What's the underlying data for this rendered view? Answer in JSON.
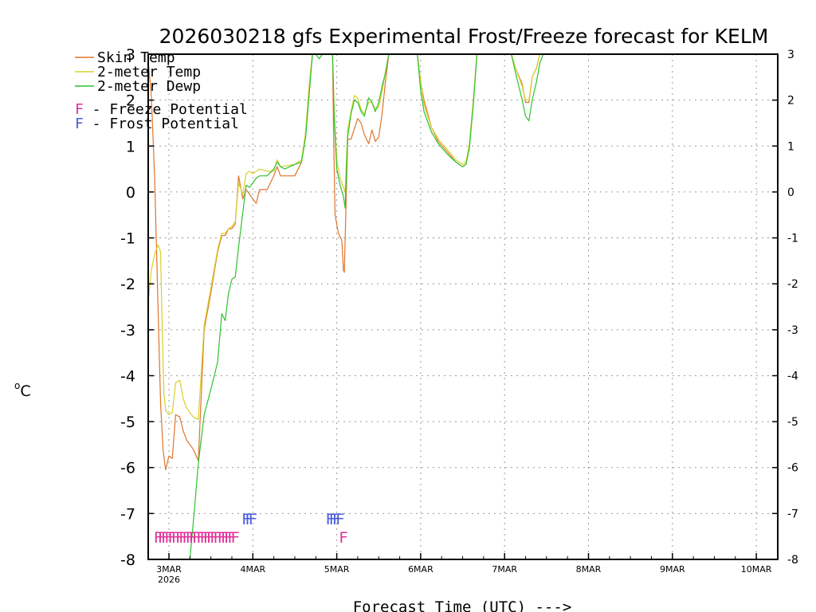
{
  "chart_data": {
    "type": "line",
    "title": "2026030218 gfs Experimental Frost/Freeze forecast for KELM",
    "xlabel": "Forecast Time (UTC) --->",
    "ylabel_unit": "°C",
    "ylabel_sup": "o",
    "ylabel_main": "C",
    "ylim": [
      -8,
      3
    ],
    "xlim_days": [
      -0.25,
      7.3
    ],
    "y_ticks": [
      "-8",
      "-7",
      "-6",
      "-5",
      "-4",
      "-3",
      "-2",
      "-1",
      "0",
      "1",
      "2",
      "3"
    ],
    "x_ticks": [
      {
        "label": "3MAR",
        "day": 0
      },
      {
        "label": "4MAR",
        "day": 1
      },
      {
        "label": "5MAR",
        "day": 2
      },
      {
        "label": "6MAR",
        "day": 3
      },
      {
        "label": "7MAR",
        "day": 4
      },
      {
        "label": "8MAR",
        "day": 5
      },
      {
        "label": "9MAR",
        "day": 6
      },
      {
        "label": "10MAR",
        "day": 7
      }
    ],
    "x_year_label": "2026",
    "grid": true,
    "legend": {
      "series_entries": [
        "Skin Temp",
        "2-meter Temp",
        "2-meter Dewp"
      ],
      "marker_entries": [
        {
          "marker": "F",
          "label": " - Freeze Potential",
          "color": "#e0309a"
        },
        {
          "marker": "F",
          "label": " - Frost Potential",
          "color": "#4a5bdc"
        }
      ],
      "position": "top-left"
    },
    "series": [
      {
        "name": "Skin Temp",
        "color": "#e0742a",
        "points": [
          [
            -0.25,
            2.9
          ],
          [
            -0.21,
            2.1
          ],
          [
            -0.17,
            0.3
          ],
          [
            -0.13,
            -2.5
          ],
          [
            -0.1,
            -4.6
          ],
          [
            -0.07,
            -5.6
          ],
          [
            -0.04,
            -6.05
          ],
          [
            0.0,
            -5.75
          ],
          [
            0.04,
            -5.8
          ],
          [
            0.08,
            -4.85
          ],
          [
            0.13,
            -4.9
          ],
          [
            0.17,
            -5.2
          ],
          [
            0.21,
            -5.4
          ],
          [
            0.29,
            -5.6
          ],
          [
            0.35,
            -5.85
          ],
          [
            0.42,
            -3.0
          ],
          [
            0.5,
            -2.2
          ],
          [
            0.58,
            -1.3
          ],
          [
            0.63,
            -0.95
          ],
          [
            0.67,
            -0.95
          ],
          [
            0.71,
            -0.8
          ],
          [
            0.75,
            -0.8
          ],
          [
            0.79,
            -0.7
          ],
          [
            0.83,
            0.35
          ],
          [
            0.88,
            -0.15
          ],
          [
            0.92,
            0.05
          ],
          [
            0.96,
            -0.05
          ],
          [
            1.04,
            -0.25
          ],
          [
            1.08,
            0.05
          ],
          [
            1.17,
            0.05
          ],
          [
            1.25,
            0.35
          ],
          [
            1.29,
            0.55
          ],
          [
            1.33,
            0.35
          ],
          [
            1.5,
            0.35
          ],
          [
            1.58,
            0.65
          ],
          [
            1.63,
            1.3
          ],
          [
            1.67,
            2.3
          ],
          [
            1.71,
            3.0
          ],
          [
            1.95,
            3.0
          ],
          [
            1.96,
            1.5
          ],
          [
            1.98,
            -0.5
          ],
          [
            2.02,
            -0.9
          ],
          [
            2.06,
            -1.05
          ],
          [
            2.08,
            -1.7
          ],
          [
            2.09,
            -1.75
          ],
          [
            2.13,
            1.15
          ],
          [
            2.17,
            1.15
          ],
          [
            2.25,
            1.6
          ],
          [
            2.29,
            1.5
          ],
          [
            2.33,
            1.25
          ],
          [
            2.38,
            1.05
          ],
          [
            2.42,
            1.35
          ],
          [
            2.46,
            1.1
          ],
          [
            2.5,
            1.2
          ],
          [
            2.54,
            1.7
          ],
          [
            2.58,
            2.4
          ],
          [
            2.62,
            3.0
          ],
          [
            2.96,
            3.0
          ],
          [
            3.0,
            2.4
          ],
          [
            3.04,
            2.0
          ],
          [
            3.13,
            1.4
          ],
          [
            3.21,
            1.1
          ],
          [
            3.33,
            0.85
          ],
          [
            3.42,
            0.65
          ],
          [
            3.5,
            0.55
          ],
          [
            3.54,
            0.6
          ],
          [
            3.58,
            1.0
          ],
          [
            3.63,
            2.0
          ],
          [
            3.67,
            3.0
          ],
          [
            4.08,
            3.0
          ],
          [
            4.13,
            2.7
          ],
          [
            4.21,
            2.35
          ],
          [
            4.25,
            1.95
          ],
          [
            4.29,
            1.95
          ],
          [
            4.33,
            2.5
          ],
          [
            4.38,
            2.7
          ],
          [
            4.42,
            3.0
          ]
        ]
      },
      {
        "name": "2-meter Temp",
        "color": "#d8d02a",
        "points": [
          [
            -0.25,
            -2.45
          ],
          [
            -0.21,
            -1.7
          ],
          [
            -0.17,
            -1.35
          ],
          [
            -0.13,
            -1.15
          ],
          [
            -0.1,
            -1.3
          ],
          [
            -0.08,
            -3.0
          ],
          [
            -0.06,
            -4.4
          ],
          [
            -0.04,
            -4.75
          ],
          [
            0.0,
            -4.85
          ],
          [
            0.04,
            -4.8
          ],
          [
            0.08,
            -4.15
          ],
          [
            0.13,
            -4.1
          ],
          [
            0.17,
            -4.5
          ],
          [
            0.21,
            -4.7
          ],
          [
            0.29,
            -4.9
          ],
          [
            0.35,
            -4.95
          ],
          [
            0.42,
            -2.9
          ],
          [
            0.5,
            -2.1
          ],
          [
            0.58,
            -1.25
          ],
          [
            0.63,
            -0.9
          ],
          [
            0.67,
            -0.9
          ],
          [
            0.71,
            -0.8
          ],
          [
            0.75,
            -0.75
          ],
          [
            0.79,
            -0.65
          ],
          [
            0.83,
            0.2
          ],
          [
            0.88,
            -0.05
          ],
          [
            0.92,
            0.4
          ],
          [
            0.96,
            0.45
          ],
          [
            1.0,
            0.4
          ],
          [
            1.04,
            0.45
          ],
          [
            1.08,
            0.5
          ],
          [
            1.17,
            0.45
          ],
          [
            1.25,
            0.45
          ],
          [
            1.29,
            0.7
          ],
          [
            1.33,
            0.55
          ],
          [
            1.5,
            0.6
          ],
          [
            1.58,
            0.7
          ],
          [
            1.63,
            1.3
          ],
          [
            1.67,
            2.3
          ],
          [
            1.71,
            3.0
          ],
          [
            1.95,
            3.0
          ],
          [
            1.97,
            1.8
          ],
          [
            2.0,
            0.7
          ],
          [
            2.04,
            0.3
          ],
          [
            2.08,
            0.1
          ],
          [
            2.1,
            0.0
          ],
          [
            2.13,
            1.35
          ],
          [
            2.17,
            1.75
          ],
          [
            2.21,
            2.1
          ],
          [
            2.25,
            2.05
          ],
          [
            2.29,
            1.8
          ],
          [
            2.33,
            1.7
          ],
          [
            2.38,
            1.95
          ],
          [
            2.42,
            1.95
          ],
          [
            2.46,
            1.8
          ],
          [
            2.5,
            1.85
          ],
          [
            2.54,
            2.2
          ],
          [
            2.58,
            2.6
          ],
          [
            2.62,
            3.0
          ],
          [
            2.96,
            3.0
          ],
          [
            3.0,
            2.4
          ],
          [
            3.04,
            1.9
          ],
          [
            3.13,
            1.4
          ],
          [
            3.21,
            1.15
          ],
          [
            3.33,
            0.9
          ],
          [
            3.42,
            0.7
          ],
          [
            3.5,
            0.6
          ],
          [
            3.54,
            0.65
          ],
          [
            3.58,
            1.05
          ],
          [
            3.63,
            2.05
          ],
          [
            3.67,
            3.0
          ],
          [
            4.08,
            3.0
          ],
          [
            4.13,
            2.7
          ],
          [
            4.21,
            2.3
          ],
          [
            4.25,
            2.0
          ],
          [
            4.29,
            2.0
          ],
          [
            4.33,
            2.5
          ],
          [
            4.38,
            2.7
          ],
          [
            4.42,
            3.0
          ]
        ]
      },
      {
        "name": "2-meter Dewp",
        "color": "#2ec32e",
        "points": [
          [
            0.25,
            -8.0
          ],
          [
            0.3,
            -7.0
          ],
          [
            0.35,
            -5.9
          ],
          [
            0.42,
            -4.85
          ],
          [
            0.5,
            -4.3
          ],
          [
            0.58,
            -3.7
          ],
          [
            0.63,
            -2.65
          ],
          [
            0.67,
            -2.8
          ],
          [
            0.71,
            -2.2
          ],
          [
            0.75,
            -1.9
          ],
          [
            0.79,
            -1.85
          ],
          [
            0.83,
            -1.2
          ],
          [
            0.88,
            -0.45
          ],
          [
            0.92,
            0.15
          ],
          [
            0.96,
            0.1
          ],
          [
            1.0,
            0.2
          ],
          [
            1.04,
            0.3
          ],
          [
            1.08,
            0.35
          ],
          [
            1.17,
            0.35
          ],
          [
            1.25,
            0.5
          ],
          [
            1.29,
            0.65
          ],
          [
            1.33,
            0.55
          ],
          [
            1.38,
            0.5
          ],
          [
            1.5,
            0.6
          ],
          [
            1.58,
            0.65
          ],
          [
            1.63,
            1.2
          ],
          [
            1.67,
            2.1
          ],
          [
            1.71,
            3.0
          ],
          [
            1.75,
            3.0
          ],
          [
            1.79,
            2.9
          ],
          [
            1.83,
            3.0
          ],
          [
            1.95,
            3.0
          ],
          [
            1.97,
            1.6
          ],
          [
            2.0,
            0.5
          ],
          [
            2.04,
            0.15
          ],
          [
            2.08,
            -0.1
          ],
          [
            2.1,
            -0.35
          ],
          [
            2.13,
            1.2
          ],
          [
            2.17,
            1.7
          ],
          [
            2.21,
            2.0
          ],
          [
            2.25,
            1.95
          ],
          [
            2.29,
            1.75
          ],
          [
            2.33,
            1.65
          ],
          [
            2.38,
            2.05
          ],
          [
            2.42,
            1.95
          ],
          [
            2.46,
            1.75
          ],
          [
            2.5,
            1.95
          ],
          [
            2.54,
            2.3
          ],
          [
            2.58,
            2.6
          ],
          [
            2.62,
            3.0
          ],
          [
            2.96,
            3.0
          ],
          [
            3.0,
            2.2
          ],
          [
            3.04,
            1.75
          ],
          [
            3.13,
            1.3
          ],
          [
            3.21,
            1.05
          ],
          [
            3.33,
            0.8
          ],
          [
            3.42,
            0.65
          ],
          [
            3.5,
            0.55
          ],
          [
            3.54,
            0.6
          ],
          [
            3.58,
            0.95
          ],
          [
            3.63,
            1.95
          ],
          [
            3.67,
            3.0
          ],
          [
            4.08,
            3.0
          ],
          [
            4.13,
            2.6
          ],
          [
            4.21,
            2.0
          ],
          [
            4.25,
            1.65
          ],
          [
            4.29,
            1.55
          ],
          [
            4.33,
            2.0
          ],
          [
            4.38,
            2.4
          ],
          [
            4.42,
            2.8
          ],
          [
            4.46,
            3.0
          ]
        ]
      }
    ],
    "freeze_markers": {
      "marker": "F",
      "color": "#e0309a",
      "y": -7.5,
      "days": [
        -0.13,
        -0.08,
        -0.04,
        0.0,
        0.04,
        0.08,
        0.13,
        0.17,
        0.21,
        0.25,
        0.29,
        0.33,
        0.38,
        0.42,
        0.46,
        0.5,
        0.54,
        0.58,
        0.63,
        0.67,
        0.71,
        0.75,
        0.79,
        2.08
      ]
    },
    "frost_markers": {
      "marker": "F",
      "color": "#4a5bdc",
      "y": -7.1,
      "days": [
        0.92,
        0.96,
        1.0,
        1.92,
        1.96,
        2.0,
        2.04
      ]
    }
  }
}
